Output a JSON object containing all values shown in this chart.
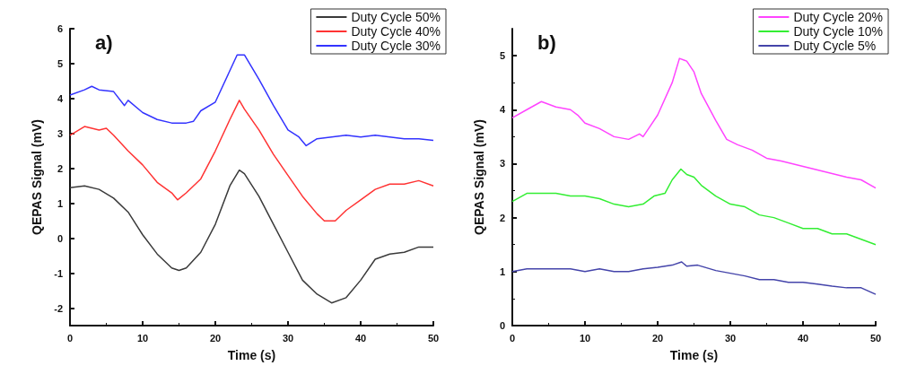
{
  "chart_data": [
    {
      "type": "line",
      "annotations": [
        "a)"
      ],
      "xlabel": "Time (s)",
      "ylabel": "QEPAS Signal (mV)",
      "xlim": [
        0,
        50
      ],
      "xticks": [
        0,
        10,
        20,
        30,
        40,
        50
      ],
      "ylim": [
        -2.5,
        6
      ],
      "yticks": [
        -2,
        -1,
        0,
        1,
        2,
        3,
        4,
        5,
        6
      ],
      "grid": false,
      "legend": "top right",
      "marker": "none",
      "line_style": "solid",
      "series": [
        {
          "name": "Duty Cycle 50%",
          "color": "#3a3a3a",
          "x": [
            0,
            2,
            4,
            6,
            8,
            10,
            12,
            14,
            15,
            16,
            18,
            20,
            22,
            23.3,
            24,
            26,
            28,
            30,
            32,
            34,
            36,
            38,
            40,
            42,
            44,
            46,
            48,
            50
          ],
          "values": [
            1.45,
            1.5,
            1.4,
            1.15,
            0.75,
            0.1,
            -0.45,
            -0.85,
            -0.92,
            -0.85,
            -0.4,
            0.4,
            1.5,
            1.95,
            1.85,
            1.2,
            0.4,
            -0.4,
            -1.2,
            -1.6,
            -1.85,
            -1.7,
            -1.2,
            -0.6,
            -0.45,
            -0.4,
            -0.25,
            -0.25
          ]
        },
        {
          "name": "Duty Cycle 40%",
          "color": "#ff3333",
          "x": [
            0,
            2,
            4,
            5,
            6,
            8,
            10,
            12,
            14,
            14.8,
            16,
            18,
            20,
            22,
            23.3,
            24,
            26,
            28,
            30,
            32,
            34,
            35,
            36.5,
            38,
            40,
            42,
            44,
            46,
            48,
            50
          ],
          "values": [
            2.95,
            3.2,
            3.1,
            3.15,
            2.95,
            2.5,
            2.1,
            1.6,
            1.3,
            1.1,
            1.3,
            1.7,
            2.5,
            3.4,
            3.95,
            3.7,
            3.1,
            2.4,
            1.8,
            1.2,
            0.7,
            0.5,
            0.5,
            0.8,
            1.1,
            1.4,
            1.55,
            1.55,
            1.65,
            1.5
          ]
        },
        {
          "name": "Duty Cycle 30%",
          "color": "#3333ff",
          "x": [
            0,
            2,
            3,
            4,
            6,
            7.5,
            8,
            10,
            12,
            14,
            16,
            17,
            18,
            20,
            22,
            23,
            24,
            26,
            28,
            30,
            31.5,
            32.5,
            34,
            36,
            38,
            40,
            42,
            44,
            46,
            48,
            50
          ],
          "values": [
            4.1,
            4.25,
            4.35,
            4.25,
            4.2,
            3.8,
            3.95,
            3.6,
            3.4,
            3.3,
            3.3,
            3.35,
            3.65,
            3.9,
            4.8,
            5.25,
            5.25,
            4.55,
            3.8,
            3.1,
            2.9,
            2.65,
            2.85,
            2.9,
            2.95,
            2.9,
            2.95,
            2.9,
            2.85,
            2.85,
            2.8
          ]
        }
      ]
    },
    {
      "type": "line",
      "annotations": [
        "b)"
      ],
      "xlabel": "Time (s)",
      "ylabel": "QEPAS Signal (mV)",
      "xlim": [
        0,
        50
      ],
      "xticks": [
        0,
        10,
        20,
        30,
        40,
        50
      ],
      "ylim": [
        0,
        5.5
      ],
      "yticks": [
        0,
        1,
        2,
        3,
        4,
        5
      ],
      "grid": false,
      "legend": "top right",
      "marker": "none",
      "line_style": "solid",
      "series": [
        {
          "name": "Duty Cycle 20%",
          "color": "#ff44ff",
          "x": [
            0,
            2,
            4,
            6,
            8,
            9,
            10,
            12,
            14,
            16,
            17.5,
            18,
            19,
            20,
            22,
            23,
            24,
            25,
            26,
            28,
            29.5,
            31,
            33,
            35,
            37,
            40,
            43,
            46,
            48,
            50
          ],
          "values": [
            3.85,
            4.0,
            4.15,
            4.05,
            4.0,
            3.9,
            3.75,
            3.65,
            3.5,
            3.45,
            3.55,
            3.5,
            3.7,
            3.9,
            4.5,
            4.95,
            4.9,
            4.7,
            4.3,
            3.8,
            3.45,
            3.35,
            3.25,
            3.1,
            3.05,
            2.95,
            2.85,
            2.75,
            2.7,
            2.55
          ]
        },
        {
          "name": "Duty Cycle 10%",
          "color": "#33ee33",
          "x": [
            0,
            2,
            4,
            6,
            8,
            10,
            12,
            14,
            16,
            18,
            19.5,
            21,
            22,
            23.2,
            24,
            25,
            26,
            28,
            30,
            32,
            34,
            36,
            38,
            40,
            42,
            44,
            46,
            48,
            50
          ],
          "values": [
            2.3,
            2.45,
            2.45,
            2.45,
            2.4,
            2.4,
            2.35,
            2.25,
            2.2,
            2.25,
            2.4,
            2.45,
            2.7,
            2.9,
            2.8,
            2.75,
            2.6,
            2.4,
            2.25,
            2.2,
            2.05,
            2.0,
            1.9,
            1.8,
            1.8,
            1.7,
            1.7,
            1.6,
            1.5
          ]
        },
        {
          "name": "Duty Cycle 5%",
          "color": "#4444aa",
          "x": [
            0,
            2,
            4,
            6,
            8,
            10,
            12,
            14,
            16,
            18,
            20,
            22,
            23.3,
            24,
            25.5,
            28,
            30,
            32,
            34,
            36,
            38,
            40,
            42,
            44,
            46,
            48,
            50
          ],
          "values": [
            1.0,
            1.05,
            1.05,
            1.05,
            1.05,
            1.0,
            1.05,
            1.0,
            1.0,
            1.05,
            1.08,
            1.12,
            1.18,
            1.1,
            1.12,
            1.02,
            0.97,
            0.92,
            0.85,
            0.85,
            0.8,
            0.8,
            0.77,
            0.73,
            0.7,
            0.7,
            0.58
          ]
        }
      ]
    }
  ]
}
